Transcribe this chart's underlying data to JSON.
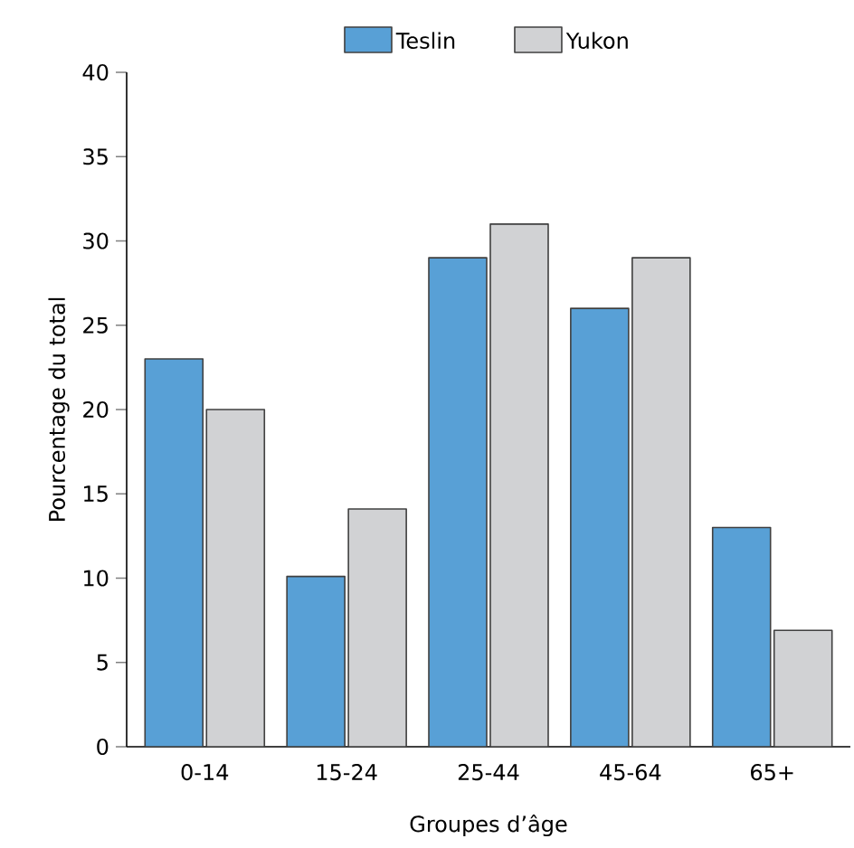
{
  "chart_data": {
    "type": "bar",
    "xlabel": "Groupes d’âge",
    "ylabel": "Pourcentage du total",
    "categories": [
      "0-14",
      "15-24",
      "25-44",
      "45-64",
      "65+"
    ],
    "series": [
      {
        "name": "Teslin",
        "color": "#58a0d6",
        "values": [
          23,
          10.1,
          29,
          26,
          13
        ]
      },
      {
        "name": "Yukon",
        "color": "#d1d2d4",
        "values": [
          20,
          14.1,
          31,
          29,
          6.9
        ]
      }
    ],
    "ylim": [
      0,
      40
    ],
    "yticks": [
      0,
      5,
      10,
      15,
      20,
      25,
      30,
      35,
      40
    ],
    "legend": "top",
    "grid": false
  }
}
